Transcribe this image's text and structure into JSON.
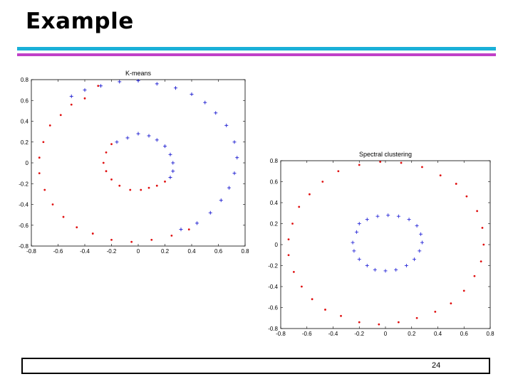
{
  "slide": {
    "title": "Example",
    "page_number": "24",
    "rule_colors": {
      "cyan": "#1ab0d8",
      "magenta": "#c040c8"
    }
  },
  "chart_data": [
    {
      "type": "scatter",
      "title": "K-means",
      "xlabel": "",
      "ylabel": "",
      "xlim": [
        -0.8,
        0.8
      ],
      "ylim": [
        -0.8,
        0.8
      ],
      "xticks": [
        "-0.8",
        "-0.6",
        "-0.4",
        "-0.2",
        "0",
        "0.2",
        "0.4",
        "0.6",
        "0.8"
      ],
      "yticks": [
        "0.8",
        "0.6",
        "0.4",
        "0.2",
        "0",
        "-0.2",
        "-0.4",
        "-0.6",
        "-0.8"
      ],
      "grid": false,
      "series": [
        {
          "color": "#e01010",
          "marker": "dot",
          "points": [
            [
              -0.3,
              0.74
            ],
            [
              -0.4,
              0.62
            ],
            [
              -0.5,
              0.56
            ],
            [
              -0.58,
              0.46
            ],
            [
              -0.66,
              0.36
            ],
            [
              -0.71,
              0.2
            ],
            [
              -0.74,
              0.05
            ],
            [
              -0.74,
              -0.1
            ],
            [
              -0.7,
              -0.26
            ],
            [
              -0.64,
              -0.4
            ],
            [
              -0.56,
              -0.52
            ],
            [
              -0.46,
              -0.62
            ],
            [
              -0.34,
              -0.68
            ],
            [
              -0.2,
              -0.74
            ],
            [
              -0.05,
              -0.76
            ],
            [
              0.1,
              -0.74
            ],
            [
              0.25,
              -0.7
            ],
            [
              0.38,
              -0.64
            ],
            [
              -0.2,
              0.18
            ],
            [
              -0.24,
              0.1
            ],
            [
              -0.26,
              0.0
            ],
            [
              -0.24,
              -0.08
            ],
            [
              -0.2,
              -0.16
            ],
            [
              -0.14,
              -0.22
            ],
            [
              -0.06,
              -0.26
            ],
            [
              0.02,
              -0.26
            ],
            [
              0.08,
              -0.24
            ],
            [
              0.14,
              -0.22
            ],
            [
              0.2,
              -0.18
            ]
          ]
        },
        {
          "color": "#1a1ad0",
          "marker": "plus",
          "points": [
            [
              -0.5,
              0.64
            ],
            [
              -0.4,
              0.7
            ],
            [
              -0.28,
              0.74
            ],
            [
              -0.14,
              0.78
            ],
            [
              0.0,
              0.79
            ],
            [
              0.14,
              0.76
            ],
            [
              0.28,
              0.72
            ],
            [
              0.4,
              0.66
            ],
            [
              0.5,
              0.58
            ],
            [
              0.58,
              0.48
            ],
            [
              0.66,
              0.36
            ],
            [
              0.72,
              0.2
            ],
            [
              0.74,
              0.05
            ],
            [
              0.72,
              -0.1
            ],
            [
              0.68,
              -0.24
            ],
            [
              0.62,
              -0.36
            ],
            [
              0.54,
              -0.48
            ],
            [
              0.44,
              -0.58
            ],
            [
              0.32,
              -0.64
            ],
            [
              -0.16,
              0.2
            ],
            [
              -0.08,
              0.24
            ],
            [
              0.0,
              0.28
            ],
            [
              0.08,
              0.26
            ],
            [
              0.14,
              0.22
            ],
            [
              0.2,
              0.16
            ],
            [
              0.24,
              0.08
            ],
            [
              0.26,
              0.0
            ],
            [
              0.26,
              -0.08
            ],
            [
              0.24,
              -0.14
            ]
          ]
        }
      ]
    },
    {
      "type": "scatter",
      "title": "Spectral clustering",
      "xlabel": "",
      "ylabel": "",
      "xlim": [
        -0.8,
        0.8
      ],
      "ylim": [
        -0.8,
        0.8
      ],
      "xticks": [
        "-0.8",
        "-0.6",
        "-0.4",
        "-0.2",
        "0",
        "0.2",
        "0.4",
        "0.6",
        "0.8"
      ],
      "yticks": [
        "0.8",
        "0.6",
        "0.4",
        "0.2",
        "0",
        "-0.2",
        "-0.4",
        "-0.6",
        "-0.8"
      ],
      "grid": false,
      "series": [
        {
          "color": "#e01010",
          "marker": "dot",
          "points": [
            [
              -0.36,
              0.7
            ],
            [
              -0.2,
              0.76
            ],
            [
              -0.04,
              0.79
            ],
            [
              0.12,
              0.78
            ],
            [
              0.28,
              0.74
            ],
            [
              0.42,
              0.66
            ],
            [
              0.54,
              0.58
            ],
            [
              0.62,
              0.46
            ],
            [
              0.7,
              0.32
            ],
            [
              0.74,
              0.16
            ],
            [
              0.75,
              0.0
            ],
            [
              0.73,
              -0.16
            ],
            [
              0.68,
              -0.3
            ],
            [
              0.6,
              -0.44
            ],
            [
              0.5,
              -0.56
            ],
            [
              0.38,
              -0.64
            ],
            [
              0.24,
              -0.7
            ],
            [
              0.1,
              -0.74
            ],
            [
              -0.05,
              -0.76
            ],
            [
              -0.2,
              -0.74
            ],
            [
              -0.34,
              -0.68
            ],
            [
              -0.46,
              -0.62
            ],
            [
              -0.56,
              -0.52
            ],
            [
              -0.64,
              -0.4
            ],
            [
              -0.7,
              -0.26
            ],
            [
              -0.74,
              -0.1
            ],
            [
              -0.74,
              0.05
            ],
            [
              -0.71,
              0.2
            ],
            [
              -0.66,
              0.36
            ],
            [
              -0.58,
              0.48
            ],
            [
              -0.48,
              0.6
            ]
          ]
        },
        {
          "color": "#2a2ad8",
          "marker": "plus",
          "points": [
            [
              -0.22,
              0.12
            ],
            [
              -0.2,
              0.2
            ],
            [
              -0.14,
              0.24
            ],
            [
              -0.06,
              0.27
            ],
            [
              0.02,
              0.28
            ],
            [
              0.1,
              0.27
            ],
            [
              0.18,
              0.24
            ],
            [
              0.24,
              0.18
            ],
            [
              0.27,
              0.1
            ],
            [
              0.28,
              0.02
            ],
            [
              0.26,
              -0.06
            ],
            [
              0.22,
              -0.14
            ],
            [
              0.16,
              -0.2
            ],
            [
              0.08,
              -0.24
            ],
            [
              0.0,
              -0.25
            ],
            [
              -0.08,
              -0.24
            ],
            [
              -0.14,
              -0.2
            ],
            [
              -0.2,
              -0.14
            ],
            [
              -0.24,
              -0.06
            ],
            [
              -0.25,
              0.02
            ]
          ]
        }
      ]
    }
  ]
}
